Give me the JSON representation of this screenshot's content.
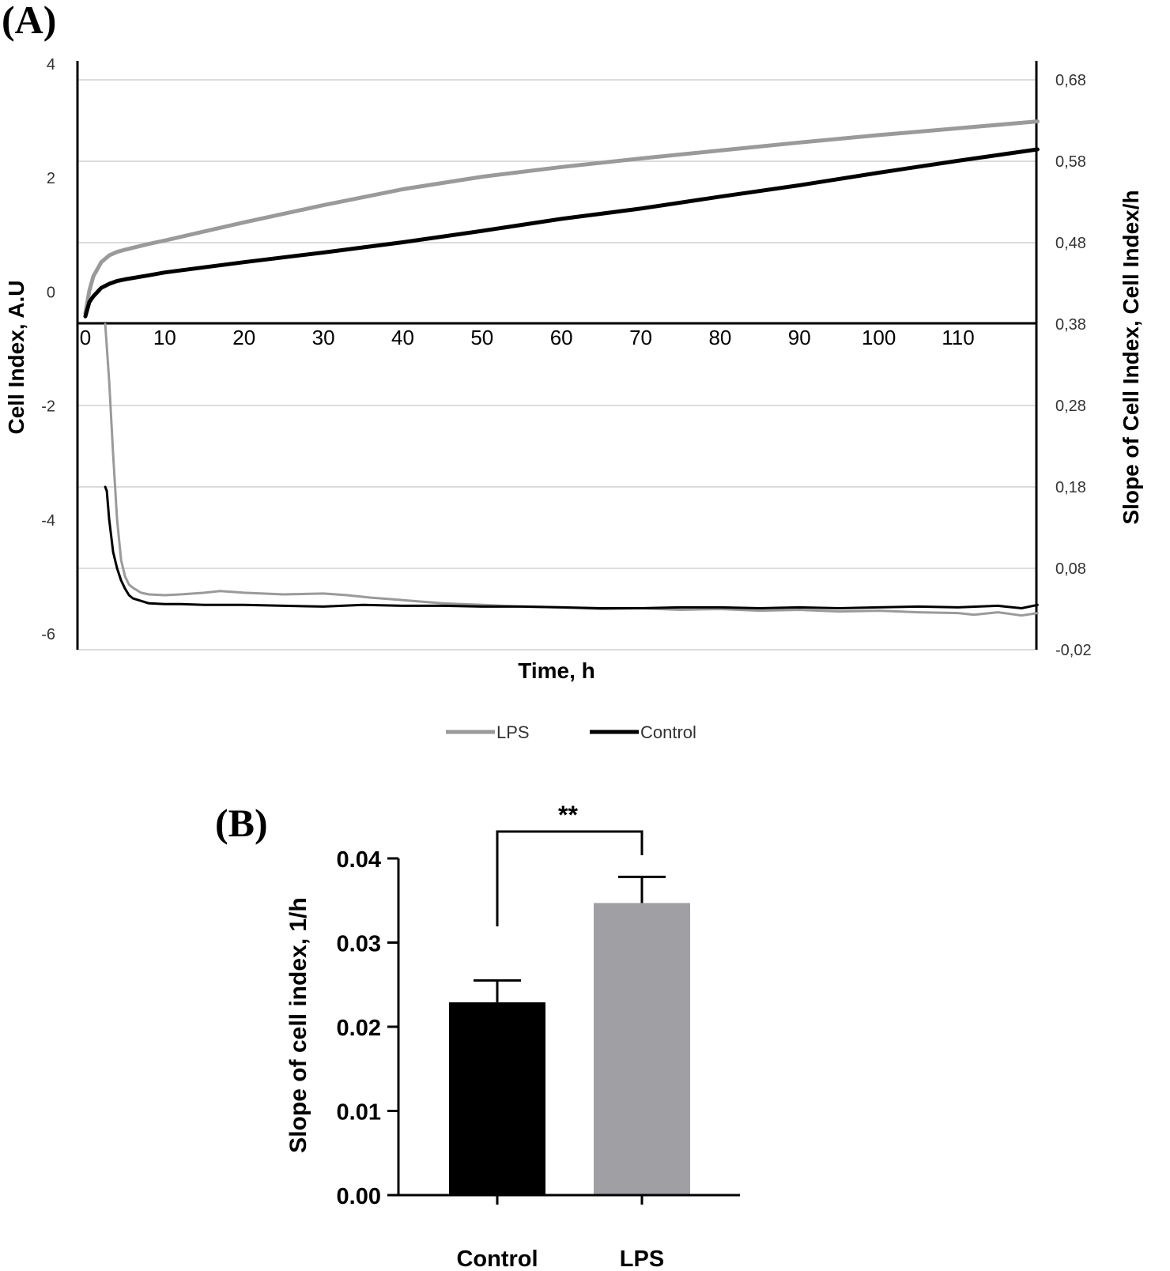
{
  "figure": {
    "panel_a_label": "(A)",
    "panel_b_label": "(B)"
  },
  "chart_data": [
    {
      "type": "line",
      "panel": "A",
      "xlabel": "Time, h",
      "ylabel": "Cell Index, A.U",
      "y2label": "Slope of Cell Index, Cell Index/h",
      "xlim": [
        0,
        120
      ],
      "ylim": [
        -6,
        4
      ],
      "y2lim": [
        -0.02,
        0.68
      ],
      "x_ticks": [
        "0",
        "10",
        "20",
        "30",
        "40",
        "50",
        "60",
        "70",
        "80",
        "90",
        "100",
        "110"
      ],
      "y_ticks": [
        "4",
        "2",
        "0",
        "-2",
        "-4",
        "-6"
      ],
      "y2_ticks": [
        "0,68",
        "0,58",
        "0,48",
        "0,38",
        "0,28",
        "0,18",
        "0,08",
        "-0,02"
      ],
      "legend": [
        "LPS",
        "Control"
      ],
      "legend_position": "bottom-center",
      "grid": true,
      "series": [
        {
          "name": "LPS",
          "axis": "left",
          "color": "#9a9a9a",
          "x": [
            0,
            0.5,
            1,
            2,
            3,
            4,
            5,
            8,
            10,
            20,
            30,
            40,
            50,
            60,
            70,
            80,
            90,
            100,
            110,
            120
          ],
          "y": [
            -0.1,
            0.3,
            0.55,
            0.8,
            0.92,
            0.98,
            1.02,
            1.12,
            1.18,
            1.5,
            1.8,
            2.08,
            2.3,
            2.47,
            2.62,
            2.76,
            2.9,
            3.03,
            3.15,
            3.27
          ]
        },
        {
          "name": "Control",
          "axis": "left",
          "color": "#000000",
          "x": [
            0,
            0.5,
            1,
            2,
            3,
            4,
            5,
            8,
            10,
            20,
            30,
            40,
            50,
            60,
            70,
            80,
            90,
            100,
            110,
            120
          ],
          "y": [
            -0.15,
            0.1,
            0.2,
            0.35,
            0.42,
            0.47,
            0.5,
            0.57,
            0.62,
            0.8,
            0.97,
            1.15,
            1.35,
            1.56,
            1.74,
            1.95,
            2.15,
            2.37,
            2.58,
            2.78
          ]
        },
        {
          "name": "LPS slope",
          "axis": "right",
          "color": "#9a9a9a",
          "x": [
            2.5,
            3,
            3.5,
            4,
            4.5,
            5,
            5.5,
            6,
            7,
            8,
            10,
            12,
            15,
            17,
            20,
            25,
            30,
            33,
            36,
            40,
            45,
            50,
            55,
            60,
            65,
            70,
            75,
            80,
            85,
            90,
            95,
            100,
            105,
            110,
            112,
            115,
            118,
            120
          ],
          "y": [
            0.38,
            0.31,
            0.22,
            0.14,
            0.09,
            0.07,
            0.06,
            0.056,
            0.05,
            0.048,
            0.047,
            0.048,
            0.05,
            0.052,
            0.05,
            0.048,
            0.049,
            0.047,
            0.044,
            0.041,
            0.037,
            0.035,
            0.033,
            0.032,
            0.03,
            0.031,
            0.029,
            0.03,
            0.028,
            0.029,
            0.027,
            0.028,
            0.026,
            0.025,
            0.023,
            0.026,
            0.022,
            0.025
          ]
        },
        {
          "name": "Control slope",
          "axis": "right",
          "color": "#000000",
          "x": [
            2.5,
            2.7,
            3,
            3.5,
            4,
            4.5,
            5,
            5.5,
            6,
            7,
            8,
            10,
            12,
            15,
            20,
            25,
            30,
            35,
            40,
            45,
            50,
            55,
            60,
            65,
            70,
            75,
            80,
            85,
            90,
            95,
            100,
            105,
            110,
            115,
            118,
            120
          ],
          "y": [
            0.18,
            0.175,
            0.14,
            0.1,
            0.08,
            0.065,
            0.055,
            0.047,
            0.043,
            0.04,
            0.037,
            0.036,
            0.036,
            0.035,
            0.035,
            0.034,
            0.033,
            0.035,
            0.034,
            0.034,
            0.033,
            0.033,
            0.032,
            0.031,
            0.031,
            0.032,
            0.032,
            0.031,
            0.032,
            0.031,
            0.032,
            0.033,
            0.032,
            0.034,
            0.031,
            0.035
          ]
        }
      ]
    },
    {
      "type": "bar",
      "panel": "B",
      "categories": [
        "Control",
        "LPS"
      ],
      "values": [
        0.0229,
        0.0347
      ],
      "errors": [
        0.0026,
        0.0031
      ],
      "colors": [
        "#000000",
        "#a0a0a4"
      ],
      "xlabel": "",
      "ylabel": "Slope of cell index, 1/h",
      "ylim": [
        0,
        0.04
      ],
      "y_ticks": [
        "0.04",
        "0.03",
        "0.02",
        "0.01",
        "0.00"
      ],
      "significance": "**"
    }
  ]
}
